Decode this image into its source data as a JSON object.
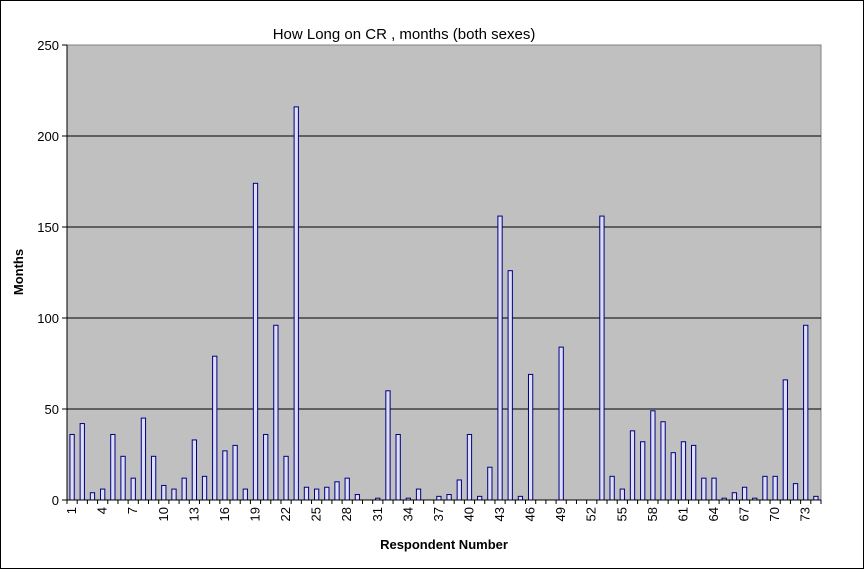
{
  "chart_data": {
    "type": "bar",
    "title": "How Long on CR , months (both sexes)",
    "xlabel": "Respondent Number",
    "ylabel": "Months",
    "ylim": [
      0,
      250
    ],
    "yticks": [
      0,
      50,
      100,
      150,
      200,
      250
    ],
    "xtick_labels": [
      "1",
      "4",
      "7",
      "10",
      "13",
      "16",
      "19",
      "22",
      "25",
      "28",
      "31",
      "34",
      "37",
      "40",
      "43",
      "46",
      "49",
      "52",
      "55",
      "58",
      "61",
      "64",
      "67",
      "70",
      "73"
    ],
    "grid": true,
    "legend": "none",
    "plot_bg": "#c0c0c0",
    "bar_fill": "#dedefa",
    "bar_stroke": "#00007f",
    "categories": [
      1,
      2,
      3,
      4,
      5,
      6,
      7,
      8,
      9,
      10,
      11,
      12,
      13,
      14,
      15,
      16,
      17,
      18,
      19,
      20,
      21,
      22,
      23,
      24,
      25,
      26,
      27,
      28,
      29,
      30,
      31,
      32,
      33,
      34,
      35,
      36,
      37,
      38,
      39,
      40,
      41,
      42,
      43,
      44,
      45,
      46,
      47,
      48,
      49,
      50,
      51,
      52,
      53,
      54,
      55,
      56,
      57,
      58,
      59,
      60,
      61,
      62,
      63,
      64,
      65,
      66,
      67,
      68,
      69,
      70,
      71,
      72,
      73,
      74
    ],
    "values": [
      36,
      42,
      4,
      6,
      36,
      24,
      12,
      45,
      24,
      8,
      6,
      12,
      33,
      13,
      79,
      27,
      30,
      6,
      174,
      36,
      96,
      24,
      216,
      7,
      6,
      7,
      10,
      12,
      3,
      0,
      1,
      60,
      36,
      1,
      6,
      0,
      2,
      3,
      11,
      36,
      2,
      18,
      156,
      126,
      2,
      69,
      0,
      0,
      84,
      0,
      0,
      0,
      156,
      13,
      6,
      38,
      32,
      49,
      43,
      26,
      32,
      30,
      12,
      12,
      1,
      4,
      7,
      1,
      13,
      13,
      66,
      9,
      96,
      2
    ]
  }
}
